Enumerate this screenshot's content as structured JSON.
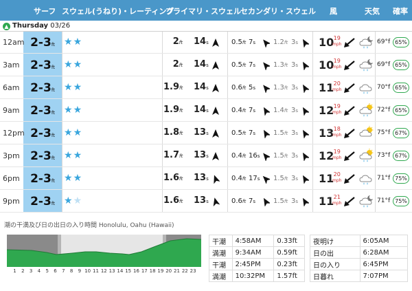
{
  "header": {
    "surf": "サーフ",
    "swell_rating": "スウェル(うねり)・レーティング",
    "primary_swell": "プライマリ・スウェル",
    "secondary_swell": "セカンダリ・スウェル",
    "wind": "風",
    "weather": "天気",
    "probability": "確率"
  },
  "day": {
    "name": "Thursday",
    "date": "03/26"
  },
  "units": {
    "ft": "ft",
    "s": "s",
    "mph": "mph",
    "f": "°f"
  },
  "rows": [
    {
      "time": "12am",
      "surf": "2-3",
      "ph": "2",
      "pp": "14",
      "sh": "0.5",
      "sp": "7",
      "sh2": "1.2",
      "sp2": "3",
      "ws": "10",
      "wg": "19",
      "temp": "69",
      "prob": "65%"
    },
    {
      "time": "3am",
      "surf": "2-3",
      "ph": "2",
      "pp": "14",
      "sh": "0.5",
      "sp": "7",
      "sh2": "1.3",
      "sp2": "3",
      "ws": "10",
      "wg": "19",
      "temp": "69",
      "prob": "65%"
    },
    {
      "time": "6am",
      "surf": "2-3",
      "ph": "1.9",
      "pp": "14",
      "sh": "0.6",
      "sp": "5",
      "sh2": "1.3",
      "sp2": "3",
      "ws": "11",
      "wg": "20",
      "temp": "70",
      "prob": "65%"
    },
    {
      "time": "9am",
      "surf": "2-3",
      "ph": "1.9",
      "pp": "14",
      "sh": "0.4",
      "sp": "7",
      "sh2": "1.4",
      "sp2": "3",
      "ws": "12",
      "wg": "19",
      "temp": "72",
      "prob": "65%"
    },
    {
      "time": "12pm",
      "surf": "2-3",
      "ph": "1.8",
      "pp": "13",
      "sh": "0.5",
      "sp": "7",
      "sh2": "1.5",
      "sp2": "3",
      "ws": "13",
      "wg": "18",
      "temp": "75",
      "prob": "67%"
    },
    {
      "time": "3pm",
      "surf": "2-3",
      "ph": "1.7",
      "pp": "13",
      "sh": "0.4",
      "sp": "16",
      "sh2": "1.5",
      "sp2": "3",
      "ws": "12",
      "wg": "19",
      "temp": "73",
      "prob": "67%"
    },
    {
      "time": "6pm",
      "surf": "2-3",
      "ph": "1.6",
      "pp": "13",
      "sh": "0.4",
      "sp": "17",
      "sh2": "1.5",
      "sp2": "3",
      "ws": "11",
      "wg": "20",
      "temp": "71",
      "prob": "75%"
    },
    {
      "time": "9pm",
      "surf": "2-3",
      "ph": "1.6",
      "pp": "13",
      "sh": "0.6",
      "sp": "7",
      "sh2": "1.5",
      "sp2": "3",
      "ws": "11",
      "wg": "21",
      "temp": "71",
      "prob": "75%"
    }
  ],
  "ratings": [
    2,
    2,
    2,
    2,
    2,
    2,
    2,
    1.5
  ],
  "weather_icons": [
    "night-rain-icon",
    "night-rain-icon",
    "rain-icon",
    "sun-rain-icon",
    "sun-cloud-icon",
    "sun-rain-icon",
    "rain-icon",
    "night-rain-icon"
  ],
  "tide": {
    "title": "潮の干満及び日の出日の入り時間 Honolulu, Oahu (Hawaii)",
    "hours": [
      "1",
      "2",
      "3",
      "4",
      "5",
      "6",
      "7",
      "8",
      "9",
      "10",
      "11",
      "12",
      "13",
      "14",
      "15",
      "16",
      "17",
      "18",
      "19",
      "20",
      "21",
      "22",
      "23"
    ],
    "tides": [
      {
        "type": "干潮",
        "time": "4:58AM",
        "height": "0.33ft"
      },
      {
        "type": "満潮",
        "time": "9:34AM",
        "height": "0.59ft"
      },
      {
        "type": "干潮",
        "time": "2:45PM",
        "height": "0.23ft"
      },
      {
        "type": "満潮",
        "time": "10:32PM",
        "height": "1.57ft"
      }
    ],
    "sun": [
      {
        "label": "夜明け",
        "time": "6:05AM"
      },
      {
        "label": "日の出",
        "time": "6:28AM"
      },
      {
        "label": "日の入り",
        "time": "6:45PM"
      },
      {
        "label": "日暮れ",
        "time": "7:07PM"
      }
    ]
  },
  "colors": {
    "header": "#4a97c9",
    "surf": "#9fd2f2",
    "star": "#3aa6dd",
    "gust": "#d03030",
    "tide": "#2fa84f"
  }
}
